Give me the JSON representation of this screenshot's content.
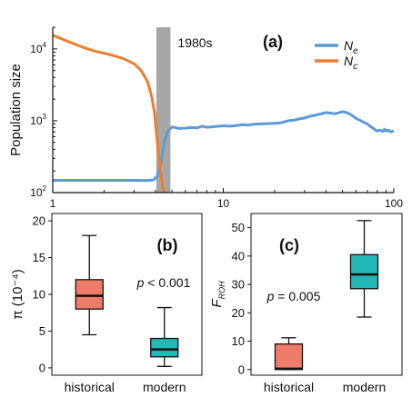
{
  "colors": {
    "ne": "#5b9bd5",
    "nc": "#ed7d31",
    "highlight": "#a6a6a6",
    "historical_box": "#ef7b6b",
    "modern_box": "#22b8b5",
    "axis": "#111111"
  },
  "chart_data": [
    {
      "type": "line",
      "panel_label": "(a)",
      "ylabel": "Population size",
      "xscale": "log",
      "yscale": "log",
      "xlim": [
        1,
        100
      ],
      "ylim": [
        100,
        20000
      ],
      "xticks": [
        1,
        10,
        100
      ],
      "xtick_labels": [
        "1",
        "10",
        "100"
      ],
      "yticks": [
        100,
        1000,
        10000
      ],
      "ytick_labels": [
        {
          "base": "10",
          "exp": "2"
        },
        {
          "base": "10",
          "exp": "3"
        },
        {
          "base": "10",
          "exp": "4"
        }
      ],
      "highlight": {
        "label": "1980s",
        "x_range": [
          4.05,
          4.9
        ]
      },
      "legend": {
        "position": "top-right",
        "entries": [
          {
            "base": "N",
            "sub": "e",
            "series": "ne"
          },
          {
            "base": "N",
            "sub": "c",
            "series": "nc"
          }
        ]
      },
      "series": [
        {
          "key": "ne",
          "points": [
            [
              1,
              148
            ],
            [
              1.5,
              148
            ],
            [
              2,
              148
            ],
            [
              2.5,
              148
            ],
            [
              3,
              148
            ],
            [
              3.5,
              147
            ],
            [
              3.9,
              150
            ],
            [
              4.1,
              170
            ],
            [
              4.3,
              260
            ],
            [
              4.5,
              480
            ],
            [
              4.7,
              700
            ],
            [
              5,
              820
            ],
            [
              5.5,
              780
            ],
            [
              6,
              790
            ],
            [
              6.5,
              805
            ],
            [
              7,
              795
            ],
            [
              7.5,
              840
            ],
            [
              8,
              810
            ],
            [
              9,
              830
            ],
            [
              10,
              850
            ],
            [
              11,
              840
            ],
            [
              12,
              860
            ],
            [
              13,
              880
            ],
            [
              14,
              870
            ],
            [
              15,
              890
            ],
            [
              16,
              900
            ],
            [
              18,
              910
            ],
            [
              20,
              920
            ],
            [
              22,
              940
            ],
            [
              24,
              1000
            ],
            [
              26,
              1020
            ],
            [
              28,
              1060
            ],
            [
              30,
              1090
            ],
            [
              32,
              1150
            ],
            [
              35,
              1200
            ],
            [
              38,
              1260
            ],
            [
              40,
              1300
            ],
            [
              42,
              1280
            ],
            [
              45,
              1250
            ],
            [
              48,
              1300
            ],
            [
              50,
              1340
            ],
            [
              52,
              1310
            ],
            [
              55,
              1250
            ],
            [
              58,
              1150
            ],
            [
              60,
              1080
            ],
            [
              63,
              1020
            ],
            [
              66,
              960
            ],
            [
              70,
              900
            ],
            [
              73,
              830
            ],
            [
              76,
              780
            ],
            [
              78,
              740
            ],
            [
              80,
              720
            ],
            [
              83,
              740
            ],
            [
              86,
              710
            ],
            [
              88,
              760
            ],
            [
              90,
              720
            ],
            [
              93,
              740
            ],
            [
              96,
              700
            ],
            [
              100,
              720
            ]
          ]
        },
        {
          "key": "nc",
          "points": [
            [
              1,
              15500
            ],
            [
              1.2,
              13000
            ],
            [
              1.4,
              11200
            ],
            [
              1.6,
              10000
            ],
            [
              1.8,
              9200
            ],
            [
              2,
              8700
            ],
            [
              2.3,
              8000
            ],
            [
              2.6,
              7300
            ],
            [
              3,
              6200
            ],
            [
              3.3,
              5000
            ],
            [
              3.6,
              3500
            ],
            [
              3.8,
              2200
            ],
            [
              3.95,
              1300
            ],
            [
              4.05,
              700
            ],
            [
              4.15,
              380
            ],
            [
              4.25,
              230
            ],
            [
              4.35,
              150
            ],
            [
              4.45,
              108
            ],
            [
              4.55,
              90
            ]
          ]
        }
      ]
    },
    {
      "type": "box",
      "panel_label": "(b)",
      "ylabel": "π (10⁻⁴)",
      "ylim": [
        -1,
        21
      ],
      "yticks": [
        0,
        5,
        10,
        15,
        20
      ],
      "annotation": {
        "var": "p",
        "text": " < 0.001"
      },
      "categories": [
        "historical",
        "modern"
      ],
      "boxes": [
        {
          "category": "historical",
          "min": 4.5,
          "q1": 8.0,
          "median": 9.8,
          "q3": 12.0,
          "max": 18.0,
          "color": "historical_box"
        },
        {
          "category": "modern",
          "min": 0.2,
          "q1": 1.5,
          "median": 2.5,
          "q3": 4.0,
          "max": 8.2,
          "color": "modern_box"
        }
      ]
    },
    {
      "type": "box",
      "panel_label": "(c)",
      "ylabel": {
        "base": "F",
        "sub": "ROH"
      },
      "ylim": [
        -2,
        55
      ],
      "yticks": [
        0,
        10,
        20,
        30,
        40,
        50
      ],
      "annotation": {
        "var": "p",
        "text": " = 0.005"
      },
      "categories": [
        "historical",
        "modern"
      ],
      "boxes": [
        {
          "category": "historical",
          "min": 0,
          "q1": 0,
          "median": 0.3,
          "q3": 9.0,
          "max": 11.2,
          "color": "historical_box"
        },
        {
          "category": "modern",
          "min": 18.5,
          "q1": 28.5,
          "median": 33.5,
          "q3": 40.5,
          "max": 52.5,
          "color": "modern_box"
        }
      ]
    }
  ]
}
